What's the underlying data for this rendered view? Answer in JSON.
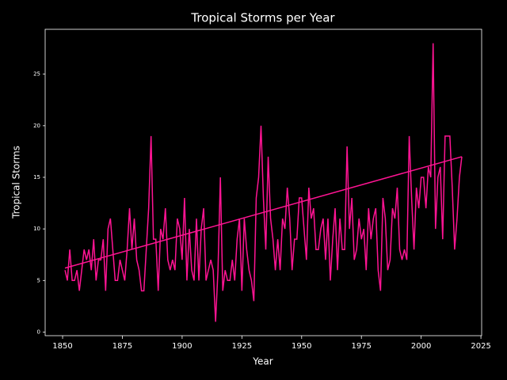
{
  "chart_data": {
    "type": "line",
    "title": "Tropical Storms per Year",
    "xlabel": "Year",
    "ylabel": "Tropical Storms",
    "x": [
      1851,
      1852,
      1853,
      1854,
      1855,
      1856,
      1857,
      1858,
      1859,
      1860,
      1861,
      1862,
      1863,
      1864,
      1865,
      1866,
      1867,
      1868,
      1869,
      1870,
      1871,
      1872,
      1873,
      1874,
      1875,
      1876,
      1877,
      1878,
      1879,
      1880,
      1881,
      1882,
      1883,
      1884,
      1885,
      1886,
      1887,
      1888,
      1889,
      1890,
      1891,
      1892,
      1893,
      1894,
      1895,
      1896,
      1897,
      1898,
      1899,
      1900,
      1901,
      1902,
      1903,
      1904,
      1905,
      1906,
      1907,
      1908,
      1909,
      1910,
      1911,
      1912,
      1913,
      1914,
      1915,
      1916,
      1917,
      1918,
      1919,
      1920,
      1921,
      1922,
      1923,
      1924,
      1925,
      1926,
      1927,
      1928,
      1929,
      1930,
      1931,
      1932,
      1933,
      1934,
      1935,
      1936,
      1937,
      1938,
      1939,
      1940,
      1941,
      1942,
      1943,
      1944,
      1945,
      1946,
      1947,
      1948,
      1949,
      1950,
      1951,
      1952,
      1953,
      1954,
      1955,
      1956,
      1957,
      1958,
      1959,
      1960,
      1961,
      1962,
      1963,
      1964,
      1965,
      1966,
      1967,
      1968,
      1969,
      1970,
      1971,
      1972,
      1973,
      1974,
      1975,
      1976,
      1977,
      1978,
      1979,
      1980,
      1981,
      1982,
      1983,
      1984,
      1985,
      1986,
      1987,
      1988,
      1989,
      1990,
      1991,
      1992,
      1993,
      1994,
      1995,
      1996,
      1997,
      1998,
      1999,
      2000,
      2001,
      2002,
      2003,
      2004,
      2005,
      2006,
      2007,
      2008,
      2009,
      2010,
      2011,
      2012,
      2013,
      2014,
      2015,
      2016,
      2017
    ],
    "series": [
      {
        "color": "#ff1493",
        "values": [
          6,
          5,
          8,
          5,
          5,
          6,
          4,
          6,
          8,
          7,
          8,
          6,
          9,
          5,
          7,
          7,
          9,
          4,
          10,
          11,
          8,
          5,
          5,
          7,
          6,
          5,
          8,
          12,
          8,
          11,
          7,
          6,
          4,
          4,
          8,
          12,
          19,
          9,
          9,
          4,
          10,
          9,
          12,
          7,
          6,
          7,
          6,
          11,
          10,
          7,
          13,
          5,
          10,
          6,
          5,
          11,
          5,
          10,
          12,
          5,
          6,
          7,
          6,
          1,
          6,
          15,
          4,
          6,
          5,
          5,
          7,
          5,
          9,
          11,
          4,
          11,
          8,
          6,
          5,
          3,
          13,
          15,
          20,
          13,
          8,
          17,
          11,
          9,
          6,
          9,
          6,
          11,
          10,
          14,
          11,
          6,
          9,
          9,
          13,
          13,
          10,
          7,
          14,
          11,
          12,
          8,
          8,
          10,
          11,
          7,
          11,
          5,
          9,
          12,
          6,
          11,
          8,
          8,
          18,
          10,
          13,
          7,
          8,
          11,
          9,
          10,
          6,
          12,
          9,
          11,
          12,
          6,
          4,
          13,
          11,
          6,
          7,
          12,
          11,
          14,
          8,
          7,
          8,
          7,
          19,
          13,
          8,
          14,
          12,
          15,
          15,
          12,
          16,
          15,
          28,
          10,
          15,
          16,
          9,
          19,
          19,
          19,
          14,
          8,
          11,
          15,
          17
        ]
      }
    ],
    "trend": {
      "color": "#ff1493",
      "x": [
        1851,
        2017
      ],
      "values": [
        6.2,
        17.0
      ]
    },
    "xlim": [
      1842.7,
      2025.3
    ],
    "ylim": [
      -0.35,
      29.35
    ],
    "xticks": [
      1850,
      1875,
      1900,
      1925,
      1950,
      1975,
      2000,
      2025
    ],
    "yticks": [
      0,
      5,
      10,
      15,
      20,
      25
    ]
  }
}
